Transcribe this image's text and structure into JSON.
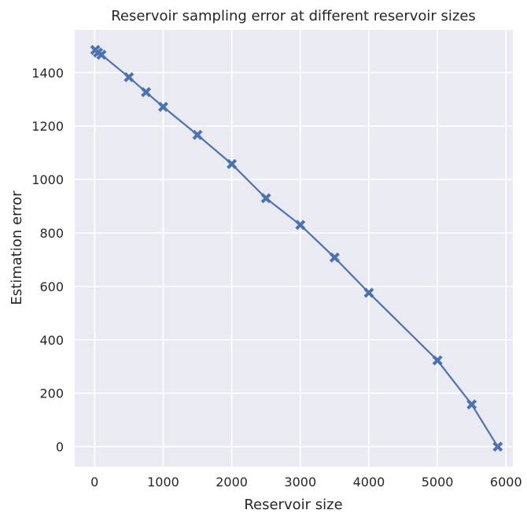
{
  "chart_data": {
    "type": "line",
    "title": "Reservoir sampling error at different reservoir sizes",
    "xlabel": "Reservoir size",
    "ylabel": "Estimation error",
    "xlim": [
      -290,
      6100
    ],
    "ylim": [
      -75,
      1560
    ],
    "xticks": [
      0,
      1000,
      2000,
      3000,
      4000,
      5000,
      6000
    ],
    "xtick_labels": [
      "0",
      "1000",
      "2000",
      "3000",
      "4000",
      "5000",
      "6000"
    ],
    "yticks": [
      0,
      200,
      400,
      600,
      800,
      1000,
      1200,
      1400
    ],
    "ytick_labels": [
      "0",
      "200",
      "400",
      "600",
      "800",
      "1000",
      "1200",
      "1400"
    ],
    "grid": true,
    "marker": "X",
    "series": [
      {
        "color": "#4c72b0",
        "x": [
          10,
          50,
          100,
          500,
          750,
          1000,
          1500,
          2000,
          2500,
          3000,
          3500,
          4000,
          5000,
          5500,
          5880
        ],
        "y": [
          1485,
          1475,
          1467,
          1383,
          1327,
          1272,
          1167,
          1058,
          930,
          830,
          708,
          576,
          323,
          158,
          0
        ]
      }
    ],
    "background": "#eaeaf2",
    "grid_color": "#ffffff"
  }
}
